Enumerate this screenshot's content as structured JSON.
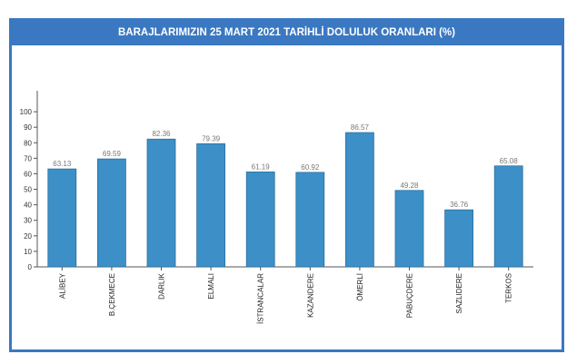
{
  "colors": {
    "accent": "#3a78c2",
    "bar": "#3d8fc7",
    "bar_border": "#2d6f9e"
  },
  "chart_data": {
    "type": "bar",
    "title": "BARAJLARIMIZIN 25 MART 2021 TARİHLİ DOLULUK ORANLARI (%)",
    "xlabel": "",
    "ylabel": "",
    "categories": [
      "ALİBEY",
      "B.ÇEKMECE",
      "DARLIK",
      "ELMALI",
      "İSTRANCALAR",
      "KAZANDERE",
      "ÖMERLİ",
      "PABUÇDERE",
      "SAZLIDERE",
      "TERKOS"
    ],
    "values": [
      63.13,
      69.59,
      82.36,
      79.39,
      61.19,
      60.92,
      86.57,
      49.28,
      36.76,
      65.08
    ],
    "value_labels": [
      "63.13",
      "69.59",
      "82.36",
      "79.39",
      "61.19",
      "60.92",
      "86.57",
      "49.28",
      "36.76",
      "65.08"
    ],
    "ylim": [
      0,
      110
    ],
    "yticks": [
      0,
      10,
      20,
      30,
      40,
      50,
      60,
      70,
      80,
      90,
      100
    ],
    "grid": false,
    "legend": "none"
  }
}
